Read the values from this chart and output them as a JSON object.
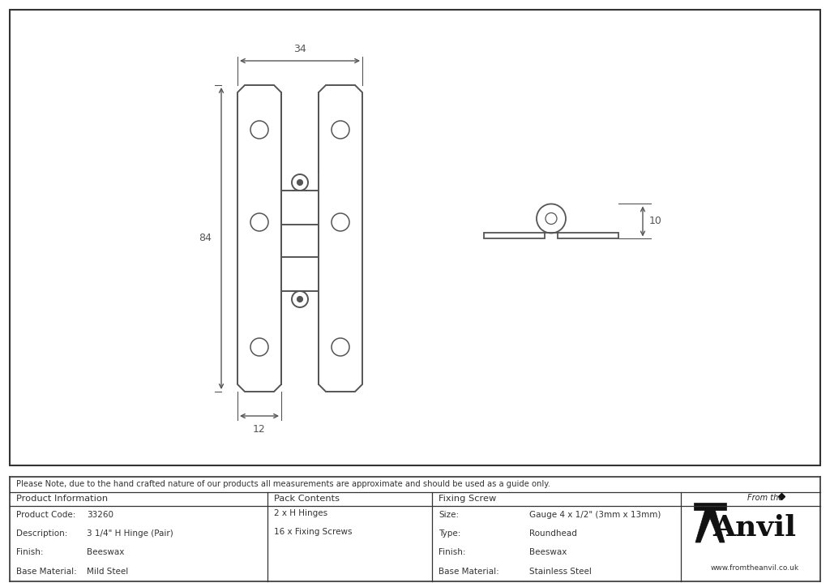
{
  "bg_color": "#ffffff",
  "line_color": "#555555",
  "note_text": "Please Note, due to the hand crafted nature of our products all measurements are approximate and should be used as a guide only.",
  "product_info": {
    "header": "Product Information",
    "rows": [
      [
        "Product Code:",
        "33260"
      ],
      [
        "Description:",
        "3 1/4\" H Hinge (Pair)"
      ],
      [
        "Finish:",
        "Beeswax"
      ],
      [
        "Base Material:",
        "Mild Steel"
      ]
    ]
  },
  "pack_contents": {
    "header": "Pack Contents",
    "items": [
      "2 x H Hinges",
      "16 x Fixing Screws"
    ]
  },
  "fixing_screw": {
    "header": "Fixing Screw",
    "rows": [
      [
        "Size:",
        "Gauge 4 x 1/2\" (3mm x 13mm)"
      ],
      [
        "Type:",
        "Roundhead"
      ],
      [
        "Finish:",
        "Beeswax"
      ],
      [
        "Base Material:",
        "Stainless Steel"
      ]
    ]
  },
  "dim_width": "34",
  "dim_height": "84",
  "dim_depth": "12",
  "dim_side": "10",
  "anvil_text": "Anvil",
  "anvil_sub": "www.fromtheanvil.co.uk",
  "anvil_from": "From the"
}
